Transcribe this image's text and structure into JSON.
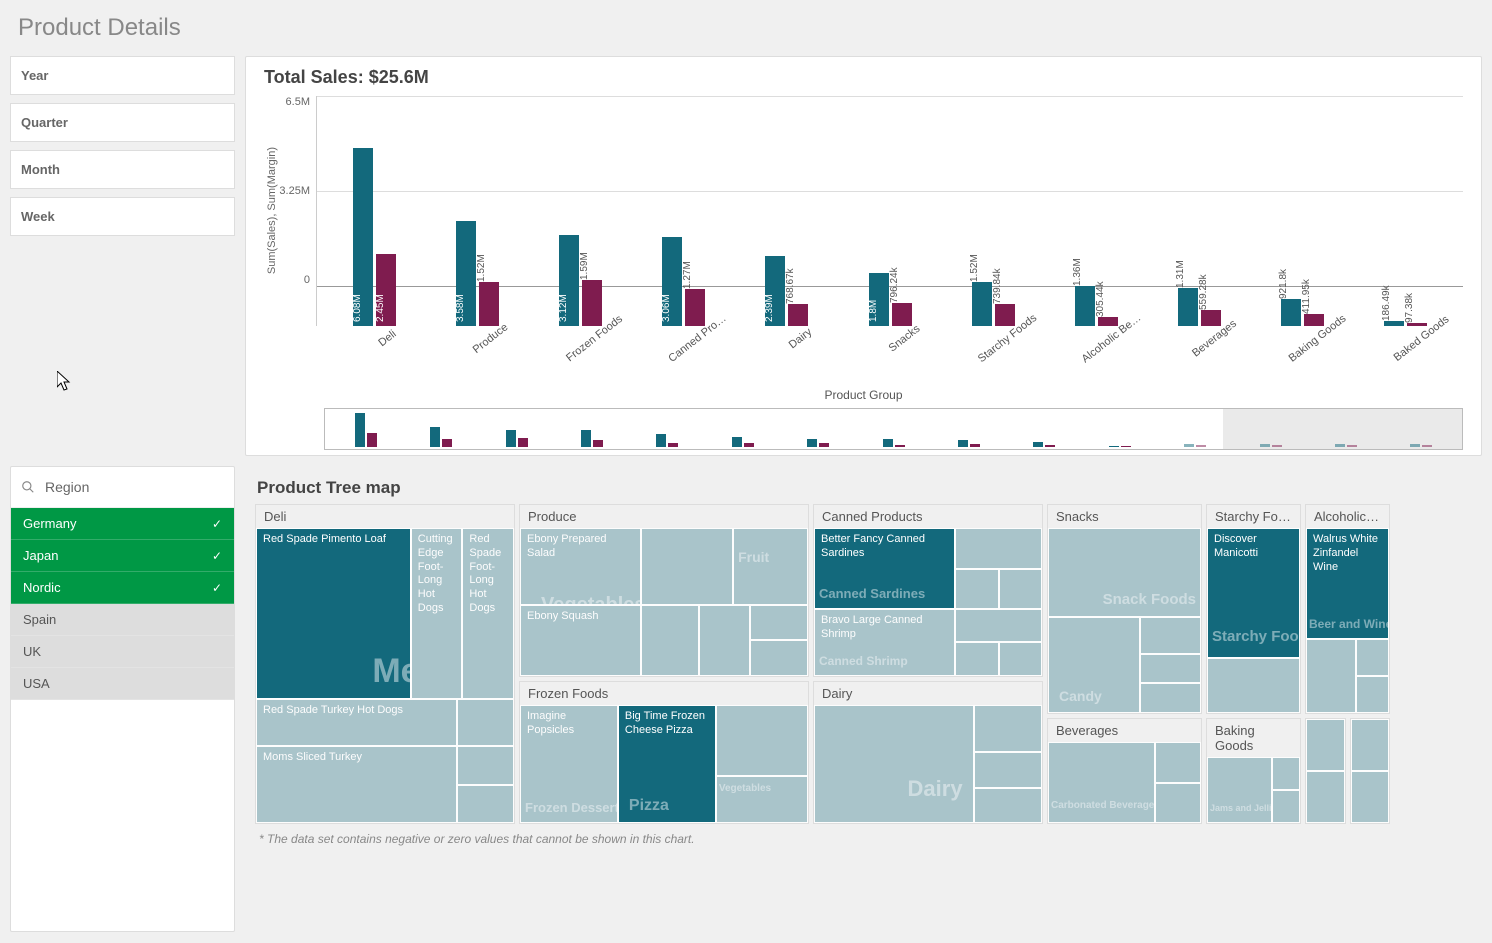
{
  "page_title": "Product Details",
  "time_filters": [
    "Year",
    "Quarter",
    "Month",
    "Week"
  ],
  "region_filter": {
    "label": "Region",
    "items": [
      {
        "name": "Germany",
        "selected": true
      },
      {
        "name": "Japan",
        "selected": true
      },
      {
        "name": "Nordic",
        "selected": true
      },
      {
        "name": "Spain",
        "selected": false
      },
      {
        "name": "UK",
        "selected": false
      },
      {
        "name": "USA",
        "selected": false
      }
    ]
  },
  "bar_chart": {
    "title": "Total Sales: $25.6M",
    "y_axis_label": "Sum(Sales), Sum(Margin)",
    "x_axis_title": "Product Group",
    "y_ticks": [
      "6.5M",
      "3.25M",
      "0"
    ],
    "y_max": 6500000,
    "colors": {
      "sales": "#13697c",
      "margin": "#7f1c4f",
      "grid": "#dddddd",
      "bg": "#ffffff"
    },
    "groups": [
      {
        "name": "Deli",
        "sales": 6080000,
        "margin": 2450000,
        "sales_label": "6.08M",
        "margin_label": "2.45M"
      },
      {
        "name": "Produce",
        "sales": 3580000,
        "margin": 1520000,
        "sales_label": "3.58M",
        "margin_label": "1.52M"
      },
      {
        "name": "Frozen Foods",
        "sales": 3120000,
        "margin": 1590000,
        "sales_label": "3.12M",
        "margin_label": "1.59M"
      },
      {
        "name": "Canned Pro…",
        "sales": 3060000,
        "margin": 1270000,
        "sales_label": "3.06M",
        "margin_label": "1.27M"
      },
      {
        "name": "Dairy",
        "sales": 2390000,
        "margin": 768670,
        "sales_label": "2.39M",
        "margin_label": "768.67k"
      },
      {
        "name": "Snacks",
        "sales": 1800000,
        "margin": 796240,
        "sales_label": "1.8M",
        "margin_label": "796.24k"
      },
      {
        "name": "Starchy Foods",
        "sales": 1520000,
        "margin": 739840,
        "sales_label": "1.52M",
        "margin_label": "739.84k"
      },
      {
        "name": "Alcoholic Be…",
        "sales": 1360000,
        "margin": 305440,
        "sales_label": "1.36M",
        "margin_label": "305.44k"
      },
      {
        "name": "Beverages",
        "sales": 1310000,
        "margin": 559280,
        "sales_label": "1.31M",
        "margin_label": "559.28k"
      },
      {
        "name": "Baking Goods",
        "sales": 921800,
        "margin": 411950,
        "sales_label": "921.8k",
        "margin_label": "411.95k"
      },
      {
        "name": "Baked Goods",
        "sales": 186490,
        "margin": 97380,
        "sales_label": "186.49k",
        "margin_label": "97.38k"
      }
    ]
  },
  "treemap": {
    "title": "Product Tree map",
    "footnote": "* The data set contains negative or zero values that cannot be shown in this chart.",
    "color_primary": "#13697c",
    "color_light": "#8fb3bc",
    "groups": {
      "deli": {
        "title": "Deli",
        "big": "Meat",
        "items": [
          "Red Spade Pimento Loaf",
          "Cutting Edge Foot-Long Hot Dogs",
          "Red Spade Foot-Long Hot Dogs",
          "Red Spade Turkey Hot Dogs",
          "Moms Sliced Turkey"
        ]
      },
      "produce": {
        "title": "Produce",
        "big": "Vegetables",
        "big2": "Fruit",
        "items": [
          "Ebony Prepared Salad",
          "Ebony Squash"
        ]
      },
      "frozen": {
        "title": "Frozen Foods",
        "big": "Frozen Desserts",
        "big2": "Pizza",
        "big3": "Vegetables",
        "items": [
          "Imagine Popsicles",
          "Big Time Frozen Cheese Pizza"
        ]
      },
      "canned": {
        "title": "Canned Products",
        "big": "Canned Sardines",
        "big2": "Canned Shrimp",
        "items": [
          "Better Fancy Canned Sardines",
          "Bravo Large Canned Shrimp"
        ]
      },
      "dairy": {
        "title": "Dairy",
        "big": "Dairy"
      },
      "snacks": {
        "title": "Snacks",
        "big": "Snack Foods",
        "big2": "Candy"
      },
      "beverages": {
        "title": "Beverages",
        "big": "Carbonated Beverages"
      },
      "starchy": {
        "title": "Starchy Fo…",
        "big": "Starchy Foods",
        "items": [
          "Discover Manicotti"
        ]
      },
      "baking": {
        "title": "Baking Goods",
        "big": "Jams and Jellies"
      },
      "alcoholic": {
        "title": "Alcoholic…",
        "big": "Beer and Wine",
        "items": [
          "Walrus White Zinfandel Wine"
        ]
      }
    }
  }
}
